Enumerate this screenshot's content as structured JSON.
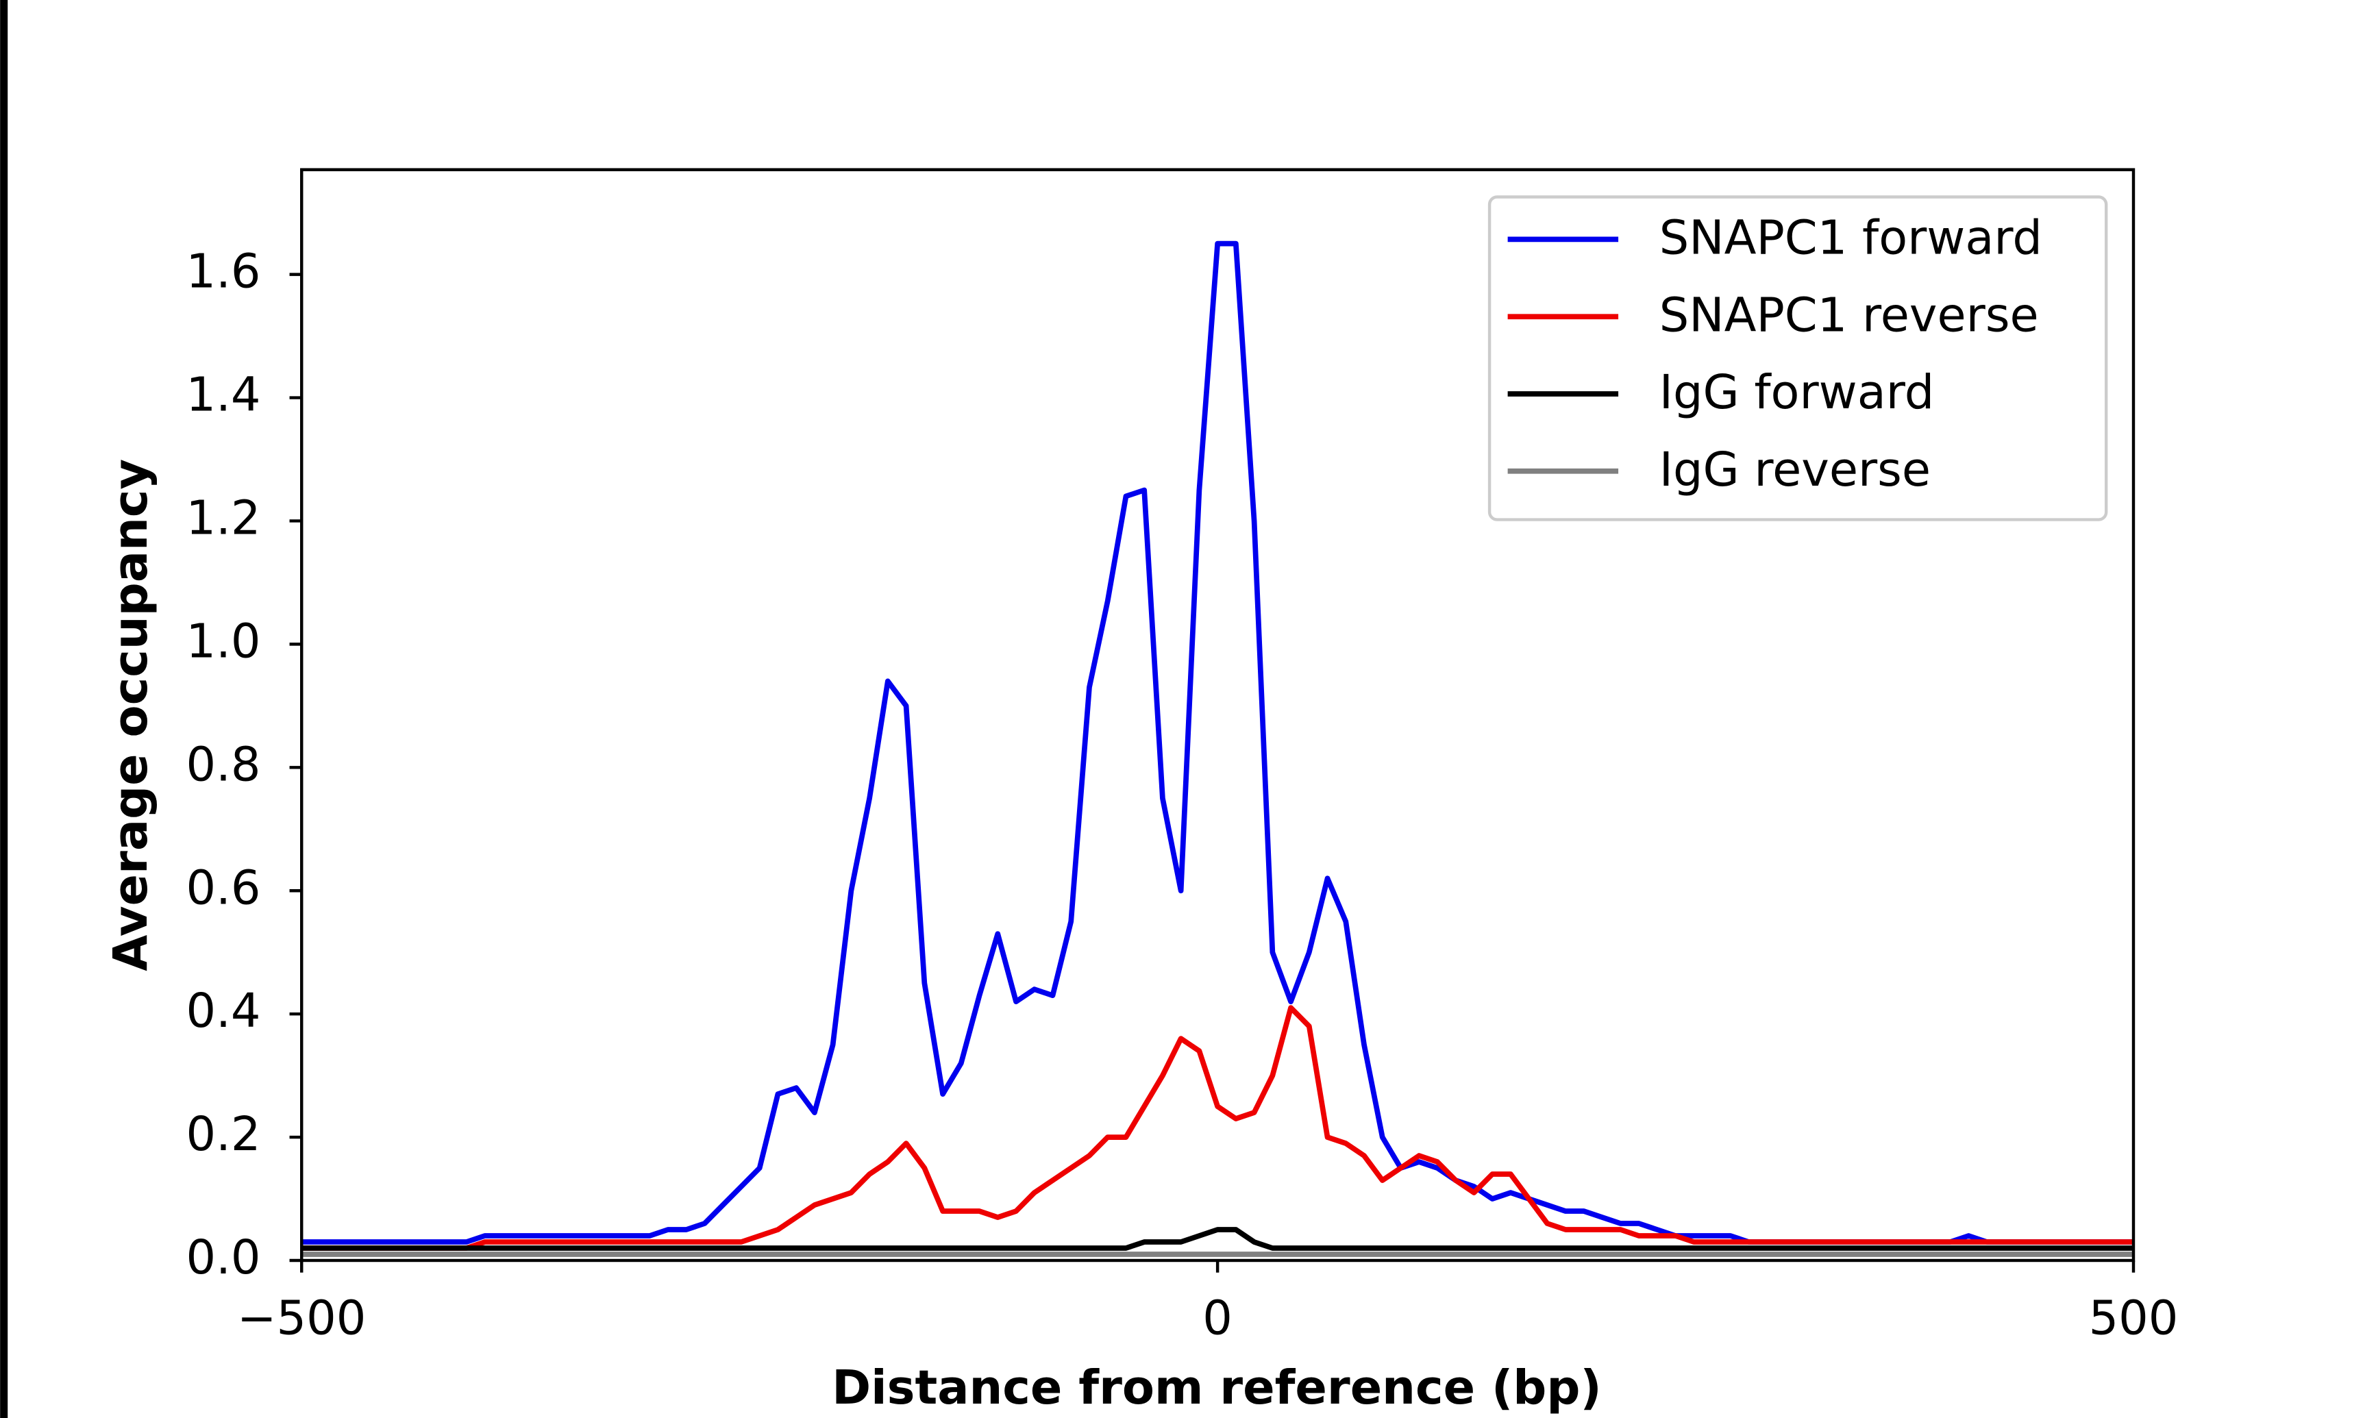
{
  "chart_data": {
    "type": "line",
    "xlabel": "Distance from reference (bp)",
    "ylabel": "Average occupancy",
    "x": [
      -500,
      -490,
      -480,
      -470,
      -460,
      -450,
      -440,
      -430,
      -420,
      -410,
      -400,
      -390,
      -380,
      -370,
      -360,
      -350,
      -340,
      -330,
      -320,
      -310,
      -300,
      -290,
      -280,
      -270,
      -260,
      -250,
      -240,
      -230,
      -220,
      -210,
      -200,
      -190,
      -180,
      -170,
      -160,
      -150,
      -140,
      -130,
      -120,
      -110,
      -100,
      -90,
      -80,
      -70,
      -60,
      -50,
      -40,
      -30,
      -20,
      -10,
      0,
      10,
      20,
      30,
      40,
      50,
      60,
      70,
      80,
      90,
      100,
      110,
      120,
      130,
      140,
      150,
      160,
      170,
      180,
      190,
      200,
      210,
      220,
      230,
      240,
      250,
      260,
      270,
      280,
      290,
      300,
      310,
      320,
      330,
      340,
      350,
      360,
      370,
      380,
      390,
      400,
      410,
      420,
      430,
      440,
      450,
      460,
      470,
      480,
      490,
      500
    ],
    "series": [
      {
        "name": "SNAPC1 forward",
        "color": "#0000ee",
        "values": [
          0.03,
          0.03,
          0.03,
          0.03,
          0.03,
          0.03,
          0.03,
          0.03,
          0.03,
          0.03,
          0.04,
          0.04,
          0.04,
          0.04,
          0.04,
          0.04,
          0.04,
          0.04,
          0.04,
          0.04,
          0.05,
          0.05,
          0.06,
          0.09,
          0.12,
          0.15,
          0.27,
          0.28,
          0.24,
          0.35,
          0.6,
          0.75,
          0.94,
          0.9,
          0.45,
          0.27,
          0.32,
          0.43,
          0.53,
          0.42,
          0.44,
          0.43,
          0.55,
          0.93,
          1.07,
          1.24,
          1.25,
          0.75,
          0.6,
          1.25,
          1.65,
          1.65,
          1.2,
          0.5,
          0.42,
          0.5,
          0.62,
          0.55,
          0.35,
          0.2,
          0.15,
          0.16,
          0.15,
          0.13,
          0.12,
          0.1,
          0.11,
          0.1,
          0.09,
          0.08,
          0.08,
          0.07,
          0.06,
          0.06,
          0.05,
          0.04,
          0.04,
          0.04,
          0.04,
          0.03,
          0.03,
          0.03,
          0.03,
          0.03,
          0.03,
          0.03,
          0.03,
          0.03,
          0.03,
          0.03,
          0.03,
          0.04,
          0.03,
          0.03,
          0.03,
          0.03,
          0.03,
          0.03,
          0.03,
          0.03,
          0.03
        ]
      },
      {
        "name": "SNAPC1 reverse",
        "color": "#ee0000",
        "values": [
          0.02,
          0.02,
          0.02,
          0.02,
          0.02,
          0.02,
          0.02,
          0.02,
          0.02,
          0.02,
          0.03,
          0.03,
          0.03,
          0.03,
          0.03,
          0.03,
          0.03,
          0.03,
          0.03,
          0.03,
          0.03,
          0.03,
          0.03,
          0.03,
          0.03,
          0.04,
          0.05,
          0.07,
          0.09,
          0.1,
          0.11,
          0.14,
          0.16,
          0.19,
          0.15,
          0.08,
          0.08,
          0.08,
          0.07,
          0.08,
          0.11,
          0.13,
          0.15,
          0.17,
          0.2,
          0.2,
          0.25,
          0.3,
          0.36,
          0.34,
          0.25,
          0.23,
          0.24,
          0.3,
          0.41,
          0.38,
          0.2,
          0.19,
          0.17,
          0.13,
          0.15,
          0.17,
          0.16,
          0.13,
          0.11,
          0.14,
          0.14,
          0.1,
          0.06,
          0.05,
          0.05,
          0.05,
          0.05,
          0.04,
          0.04,
          0.04,
          0.03,
          0.03,
          0.03,
          0.03,
          0.03,
          0.03,
          0.03,
          0.03,
          0.03,
          0.03,
          0.03,
          0.03,
          0.03,
          0.03,
          0.03,
          0.03,
          0.03,
          0.03,
          0.03,
          0.03,
          0.03,
          0.03,
          0.03,
          0.03,
          0.03
        ]
      },
      {
        "name": "IgG forward",
        "color": "#000000",
        "values": [
          0.02,
          0.02,
          0.02,
          0.02,
          0.02,
          0.02,
          0.02,
          0.02,
          0.02,
          0.02,
          0.02,
          0.02,
          0.02,
          0.02,
          0.02,
          0.02,
          0.02,
          0.02,
          0.02,
          0.02,
          0.02,
          0.02,
          0.02,
          0.02,
          0.02,
          0.02,
          0.02,
          0.02,
          0.02,
          0.02,
          0.02,
          0.02,
          0.02,
          0.02,
          0.02,
          0.02,
          0.02,
          0.02,
          0.02,
          0.02,
          0.02,
          0.02,
          0.02,
          0.02,
          0.02,
          0.02,
          0.03,
          0.03,
          0.03,
          0.04,
          0.05,
          0.05,
          0.03,
          0.02,
          0.02,
          0.02,
          0.02,
          0.02,
          0.02,
          0.02,
          0.02,
          0.02,
          0.02,
          0.02,
          0.02,
          0.02,
          0.02,
          0.02,
          0.02,
          0.02,
          0.02,
          0.02,
          0.02,
          0.02,
          0.02,
          0.02,
          0.02,
          0.02,
          0.02,
          0.02,
          0.02,
          0.02,
          0.02,
          0.02,
          0.02,
          0.02,
          0.02,
          0.02,
          0.02,
          0.02,
          0.02,
          0.02,
          0.02,
          0.02,
          0.02,
          0.02,
          0.02,
          0.02,
          0.02,
          0.02,
          0.02
        ]
      },
      {
        "name": "IgG reverse",
        "color": "#808080",
        "values": [
          0.01,
          0.01,
          0.01,
          0.01,
          0.01,
          0.01,
          0.01,
          0.01,
          0.01,
          0.01,
          0.01,
          0.01,
          0.01,
          0.01,
          0.01,
          0.01,
          0.01,
          0.01,
          0.01,
          0.01,
          0.01,
          0.01,
          0.01,
          0.01,
          0.01,
          0.01,
          0.01,
          0.01,
          0.01,
          0.01,
          0.01,
          0.01,
          0.01,
          0.01,
          0.01,
          0.01,
          0.01,
          0.01,
          0.01,
          0.01,
          0.01,
          0.01,
          0.01,
          0.01,
          0.01,
          0.01,
          0.01,
          0.01,
          0.01,
          0.01,
          0.01,
          0.01,
          0.01,
          0.01,
          0.01,
          0.01,
          0.01,
          0.01,
          0.01,
          0.01,
          0.01,
          0.01,
          0.01,
          0.01,
          0.01,
          0.01,
          0.01,
          0.01,
          0.01,
          0.01,
          0.01,
          0.01,
          0.01,
          0.01,
          0.01,
          0.01,
          0.01,
          0.01,
          0.01,
          0.01,
          0.01,
          0.01,
          0.01,
          0.01,
          0.01,
          0.01,
          0.01,
          0.01,
          0.01,
          0.01,
          0.01,
          0.01,
          0.01,
          0.01,
          0.01,
          0.01,
          0.01,
          0.01,
          0.01,
          0.01,
          0.01
        ]
      }
    ],
    "xlim": [
      -500,
      500
    ],
    "xticks": [
      {
        "value": -500,
        "label": "−500"
      },
      0,
      500
    ],
    "ylim": [
      0,
      1.77
    ],
    "yticks": [
      {
        "value": 0,
        "label": "0.0"
      },
      {
        "value": 0.2,
        "label": "0.2"
      },
      {
        "value": 0.4,
        "label": "0.4"
      },
      {
        "value": 0.6,
        "label": "0.6"
      },
      {
        "value": 0.8,
        "label": "0.8"
      },
      {
        "value": 1,
        "label": "1.0"
      },
      {
        "value": 1.2,
        "label": "1.2"
      },
      {
        "value": 1.4,
        "label": "1.4"
      },
      {
        "value": 1.6,
        "label": "1.6"
      }
    ],
    "legend": "upper right",
    "grid": false
  }
}
